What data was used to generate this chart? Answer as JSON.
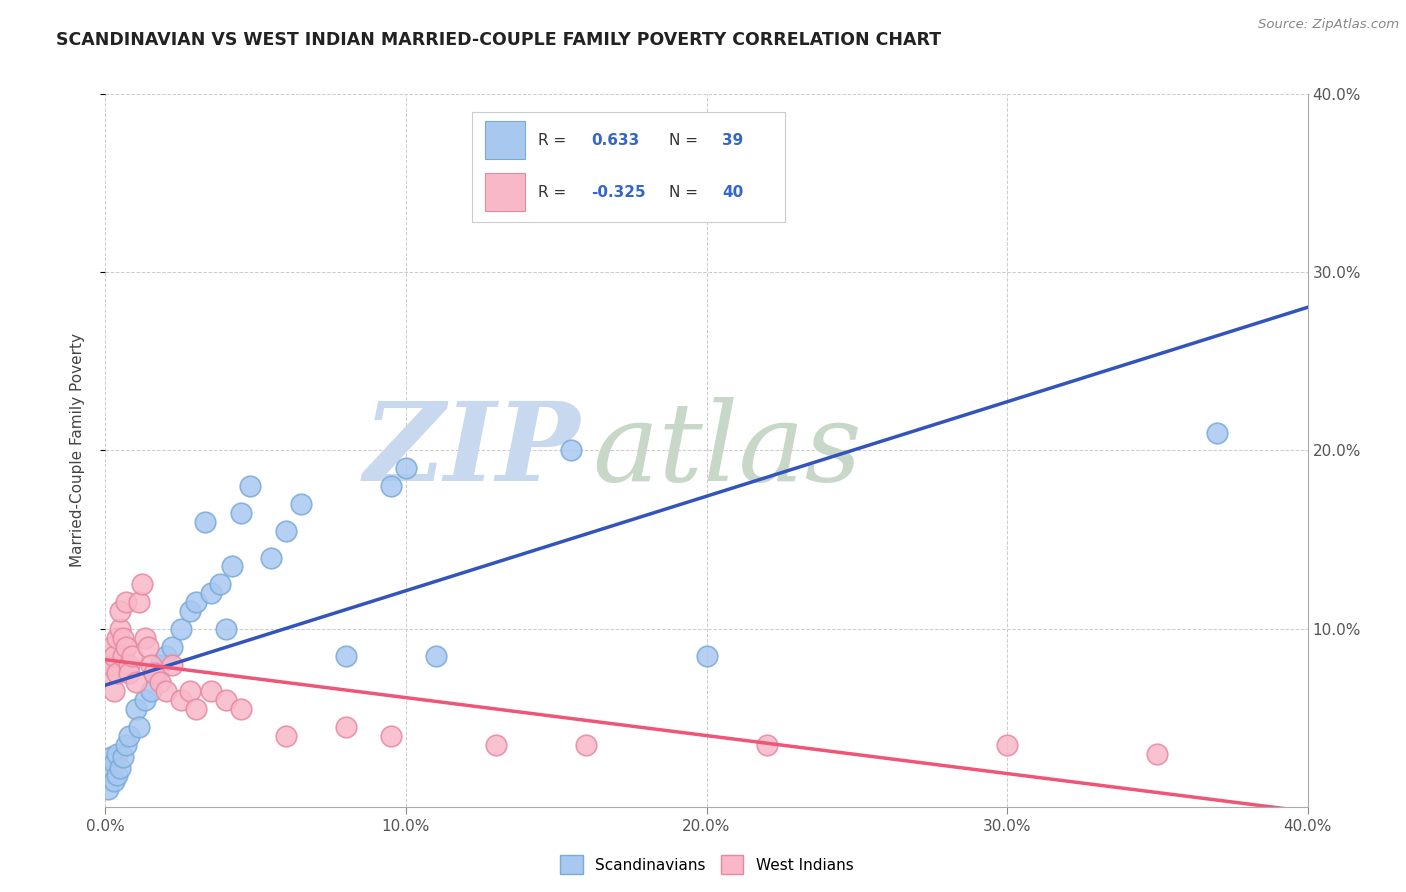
{
  "title": "SCANDINAVIAN VS WEST INDIAN MARRIED-COUPLE FAMILY POVERTY CORRELATION CHART",
  "source": "Source: ZipAtlas.com",
  "ylabel": "Married-Couple Family Poverty",
  "xlim": [
    0.0,
    0.4
  ],
  "ylim": [
    0.0,
    0.4
  ],
  "xticks": [
    0.0,
    0.1,
    0.2,
    0.3,
    0.4
  ],
  "yticks": [
    0.1,
    0.2,
    0.3,
    0.4
  ],
  "xtick_labels": [
    "0.0%",
    "10.0%",
    "20.0%",
    "30.0%",
    "40.0%"
  ],
  "right_ytick_labels": [
    "10.0%",
    "20.0%",
    "30.0%",
    "40.0%"
  ],
  "legend_label1": "Scandinavians",
  "legend_label2": "West Indians",
  "R1": 0.633,
  "N1": 39,
  "R2": -0.325,
  "N2": 40,
  "scatter_blue": [
    [
      0.001,
      0.01
    ],
    [
      0.002,
      0.02
    ],
    [
      0.002,
      0.028
    ],
    [
      0.003,
      0.015
    ],
    [
      0.003,
      0.025
    ],
    [
      0.004,
      0.018
    ],
    [
      0.004,
      0.03
    ],
    [
      0.005,
      0.022
    ],
    [
      0.006,
      0.028
    ],
    [
      0.007,
      0.035
    ],
    [
      0.008,
      0.04
    ],
    [
      0.01,
      0.055
    ],
    [
      0.011,
      0.045
    ],
    [
      0.013,
      0.06
    ],
    [
      0.015,
      0.065
    ],
    [
      0.017,
      0.075
    ],
    [
      0.018,
      0.08
    ],
    [
      0.02,
      0.085
    ],
    [
      0.022,
      0.09
    ],
    [
      0.025,
      0.1
    ],
    [
      0.028,
      0.11
    ],
    [
      0.03,
      0.115
    ],
    [
      0.033,
      0.16
    ],
    [
      0.035,
      0.12
    ],
    [
      0.038,
      0.125
    ],
    [
      0.04,
      0.1
    ],
    [
      0.042,
      0.135
    ],
    [
      0.045,
      0.165
    ],
    [
      0.048,
      0.18
    ],
    [
      0.055,
      0.14
    ],
    [
      0.06,
      0.155
    ],
    [
      0.065,
      0.17
    ],
    [
      0.08,
      0.085
    ],
    [
      0.095,
      0.18
    ],
    [
      0.1,
      0.19
    ],
    [
      0.11,
      0.085
    ],
    [
      0.155,
      0.2
    ],
    [
      0.2,
      0.085
    ],
    [
      0.37,
      0.21
    ]
  ],
  "scatter_pink": [
    [
      0.001,
      0.075
    ],
    [
      0.002,
      0.08
    ],
    [
      0.002,
      0.09
    ],
    [
      0.003,
      0.065
    ],
    [
      0.003,
      0.085
    ],
    [
      0.004,
      0.095
    ],
    [
      0.004,
      0.075
    ],
    [
      0.005,
      0.1
    ],
    [
      0.005,
      0.11
    ],
    [
      0.006,
      0.085
    ],
    [
      0.006,
      0.095
    ],
    [
      0.007,
      0.115
    ],
    [
      0.007,
      0.09
    ],
    [
      0.008,
      0.08
    ],
    [
      0.008,
      0.075
    ],
    [
      0.009,
      0.085
    ],
    [
      0.01,
      0.07
    ],
    [
      0.011,
      0.115
    ],
    [
      0.012,
      0.125
    ],
    [
      0.013,
      0.095
    ],
    [
      0.014,
      0.09
    ],
    [
      0.015,
      0.08
    ],
    [
      0.016,
      0.075
    ],
    [
      0.018,
      0.07
    ],
    [
      0.02,
      0.065
    ],
    [
      0.022,
      0.08
    ],
    [
      0.025,
      0.06
    ],
    [
      0.028,
      0.065
    ],
    [
      0.03,
      0.055
    ],
    [
      0.035,
      0.065
    ],
    [
      0.04,
      0.06
    ],
    [
      0.045,
      0.055
    ],
    [
      0.06,
      0.04
    ],
    [
      0.08,
      0.045
    ],
    [
      0.095,
      0.04
    ],
    [
      0.13,
      0.035
    ],
    [
      0.16,
      0.035
    ],
    [
      0.22,
      0.035
    ],
    [
      0.3,
      0.035
    ],
    [
      0.35,
      0.03
    ]
  ],
  "blue_color": "#A8C8F0",
  "blue_edge_color": "#7AAAD8",
  "pink_color": "#F8B8C8",
  "pink_edge_color": "#E888A0",
  "line_blue": "#3355BB",
  "line_pink": "#EE5577",
  "legend_R_color": "#3366CC",
  "text_black": "#333333",
  "background_color": "#FFFFFF",
  "grid_color": "#CCCCCC",
  "watermark_zip_color": "#C8D8EE",
  "watermark_atlas_color": "#C8D8C8"
}
